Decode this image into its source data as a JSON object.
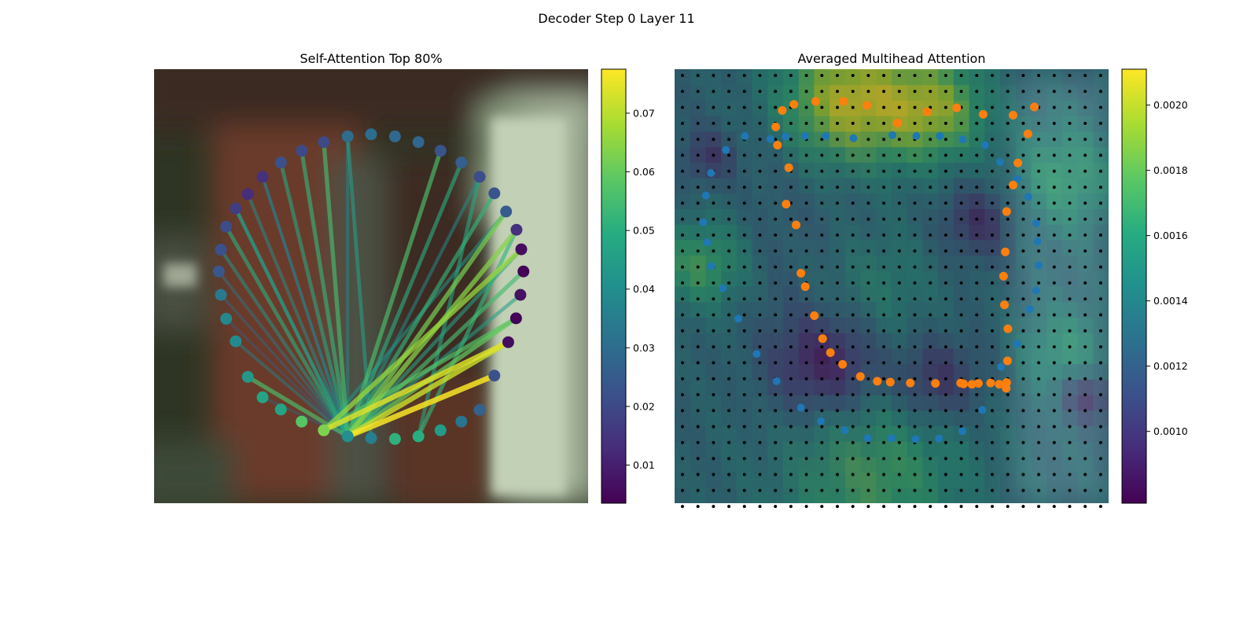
{
  "figure": {
    "suptitle": "Decoder Step 0 Layer 11"
  },
  "chart_data": [
    {
      "type": "scatter",
      "title": "Self-Attention Top 80%",
      "background": "blurred photograph (dark green / brown tones, pale green-white object on the right)",
      "colormap": "viridis",
      "colorbar": {
        "ticks": [
          0.01,
          0.02,
          0.03,
          0.04,
          0.05,
          0.06,
          0.07
        ],
        "range": [
          0.0035,
          0.0775
        ]
      },
      "image_extent": [
        0,
        1,
        0,
        1
      ],
      "nodes": {
        "x": [
          0.5,
          0.555,
          0.609,
          0.66,
          0.708,
          0.75,
          0.784,
          0.811,
          0.835,
          0.846,
          0.851,
          0.844,
          0.834,
          0.816,
          0.784,
          0.75,
          0.708,
          0.66,
          0.609,
          0.555,
          0.5,
          0.446,
          0.391,
          0.34,
          0.292,
          0.25,
          0.216,
          0.188,
          0.166,
          0.154,
          0.149,
          0.154,
          0.166,
          0.188,
          0.216,
          0.25,
          0.292,
          0.34,
          0.391,
          0.446
        ],
        "y": [
          0.85,
          0.845,
          0.832,
          0.812,
          0.785,
          0.752,
          0.714,
          0.672,
          0.63,
          0.585,
          0.534,
          0.48,
          0.426,
          0.371,
          0.294,
          0.215,
          0.188,
          0.168,
          0.154,
          0.148,
          0.15,
          0.154,
          0.168,
          0.188,
          0.216,
          0.244,
          0.291,
          0.373,
          0.425,
          0.48,
          0.534,
          0.584,
          0.637,
          0.679,
          0.712,
          0.752,
          0.785,
          0.812,
          0.832,
          0.845
        ],
        "values": [
          0.03,
          0.029,
          0.028,
          0.023,
          0.026,
          0.021,
          0.023,
          0.025,
          0.014,
          0.006,
          0.004,
          0.007,
          0.004,
          0.006,
          0.022,
          0.027,
          0.032,
          0.044,
          0.05,
          0.051,
          0.035,
          0.04,
          0.063,
          0.058,
          0.047,
          0.047,
          0.043,
          0.039,
          0.038,
          0.034,
          0.024,
          0.022,
          0.021,
          0.017,
          0.013,
          0.014,
          0.022,
          0.02,
          0.02,
          0.03
        ]
      },
      "edges": [
        [
          21,
          3,
          0.056
        ],
        [
          21,
          4,
          0.05
        ],
        [
          21,
          5,
          0.04
        ],
        [
          21,
          6,
          0.052
        ],
        [
          21,
          7,
          0.062
        ],
        [
          21,
          8,
          0.064
        ],
        [
          21,
          9,
          0.046
        ],
        [
          21,
          10,
          0.055
        ],
        [
          21,
          11,
          0.045
        ],
        [
          21,
          12,
          0.06
        ],
        [
          21,
          13,
          0.072
        ],
        [
          21,
          14,
          0.077
        ],
        [
          22,
          7,
          0.042
        ],
        [
          22,
          9,
          0.066
        ],
        [
          22,
          12,
          0.058
        ],
        [
          22,
          13,
          0.074
        ],
        [
          18,
          5,
          0.048
        ],
        [
          18,
          8,
          0.052
        ],
        [
          21,
          26,
          0.056
        ],
        [
          21,
          27,
          0.036
        ],
        [
          21,
          28,
          0.026
        ],
        [
          21,
          29,
          0.03
        ],
        [
          21,
          30,
          0.034
        ],
        [
          21,
          31,
          0.042
        ],
        [
          21,
          32,
          0.05
        ],
        [
          21,
          33,
          0.046
        ],
        [
          21,
          34,
          0.04
        ],
        [
          21,
          35,
          0.036
        ],
        [
          21,
          36,
          0.048
        ],
        [
          21,
          37,
          0.052
        ],
        [
          21,
          38,
          0.055
        ],
        [
          21,
          39,
          0.038
        ],
        [
          20,
          39,
          0.046
        ],
        [
          21,
          25,
          0.028
        ],
        [
          21,
          33,
          0.042
        ],
        [
          21,
          35,
          0.034
        ]
      ]
    },
    {
      "type": "heatmap",
      "title": "Averaged Multihead Attention",
      "colormap": "viridis",
      "colorbar": {
        "ticks": [
          0.001,
          0.0012,
          0.0014,
          0.0016,
          0.0018,
          0.002
        ],
        "range": [
          0.00078,
          0.00211
        ]
      },
      "grid_size": [
        28,
        28
      ],
      "heat_blobs": [
        {
          "cx": 0.4,
          "cy": 0.93,
          "r": 0.15,
          "v": 0.00205
        },
        {
          "cx": 0.6,
          "cy": 0.91,
          "r": 0.12,
          "v": 0.0019
        },
        {
          "cx": 0.06,
          "cy": 0.55,
          "r": 0.1,
          "v": 0.0017
        },
        {
          "cx": 0.9,
          "cy": 0.75,
          "r": 0.12,
          "v": 0.0016
        },
        {
          "cx": 0.9,
          "cy": 0.35,
          "r": 0.1,
          "v": 0.00155
        },
        {
          "cx": 0.45,
          "cy": 0.07,
          "r": 0.22,
          "v": 0.0017
        },
        {
          "cx": 0.45,
          "cy": 0.5,
          "r": 0.14,
          "v": 0.0015
        },
        {
          "cx": 0.35,
          "cy": 0.32,
          "r": 0.12,
          "v": 0.00082
        },
        {
          "cx": 0.6,
          "cy": 0.28,
          "r": 0.1,
          "v": 0.0009
        },
        {
          "cx": 0.7,
          "cy": 0.65,
          "r": 0.08,
          "v": 0.00095
        },
        {
          "cx": 0.95,
          "cy": 0.25,
          "r": 0.06,
          "v": 0.0009
        },
        {
          "cx": 0.08,
          "cy": 0.8,
          "r": 0.06,
          "v": 0.001
        }
      ],
      "heat_base": 0.00128,
      "blue_points": {
        "x": [
          0.502,
          0.557,
          0.611,
          0.664,
          0.715,
          0.75,
          0.79,
          0.815,
          0.833,
          0.836,
          0.839,
          0.833,
          0.818,
          0.789,
          0.752,
          0.709,
          0.663,
          0.609,
          0.555,
          0.5,
          0.445,
          0.392,
          0.337,
          0.291,
          0.235,
          0.189,
          0.147,
          0.111,
          0.084,
          0.075,
          0.066,
          0.072,
          0.084,
          0.118,
          0.162,
          0.221,
          0.256,
          0.3,
          0.348,
          0.412
        ],
        "y": [
          0.848,
          0.846,
          0.846,
          0.838,
          0.825,
          0.786,
          0.747,
          0.706,
          0.645,
          0.603,
          0.548,
          0.49,
          0.447,
          0.367,
          0.314,
          0.215,
          0.166,
          0.149,
          0.148,
          0.15,
          0.15,
          0.168,
          0.189,
          0.22,
          0.281,
          0.344,
          0.425,
          0.495,
          0.546,
          0.601,
          0.647,
          0.709,
          0.761,
          0.814,
          0.846,
          0.839,
          0.845,
          0.846,
          0.846,
          0.841
        ]
      },
      "orange_points": {
        "x": [
          0.514,
          0.582,
          0.65,
          0.711,
          0.78,
          0.829,
          0.814,
          0.791,
          0.78,
          0.765,
          0.762,
          0.758,
          0.76,
          0.768,
          0.767,
          0.765,
          0.764,
          0.748,
          0.728,
          0.7,
          0.685,
          0.666,
          0.659,
          0.601,
          0.543,
          0.497,
          0.467,
          0.428,
          0.387,
          0.359,
          0.341,
          0.322,
          0.301,
          0.291,
          0.28,
          0.257,
          0.263,
          0.237,
          0.233,
          0.248,
          0.275,
          0.325,
          0.389,
          0.443
        ],
        "y": [
          0.876,
          0.902,
          0.911,
          0.896,
          0.894,
          0.913,
          0.851,
          0.784,
          0.733,
          0.672,
          0.579,
          0.523,
          0.457,
          0.402,
          0.328,
          0.278,
          0.265,
          0.274,
          0.277,
          0.276,
          0.274,
          0.275,
          0.277,
          0.276,
          0.277,
          0.279,
          0.281,
          0.292,
          0.32,
          0.347,
          0.379,
          0.432,
          0.499,
          0.53,
          0.641,
          0.689,
          0.773,
          0.825,
          0.867,
          0.905,
          0.919,
          0.926,
          0.926,
          0.917
        ]
      }
    }
  ]
}
